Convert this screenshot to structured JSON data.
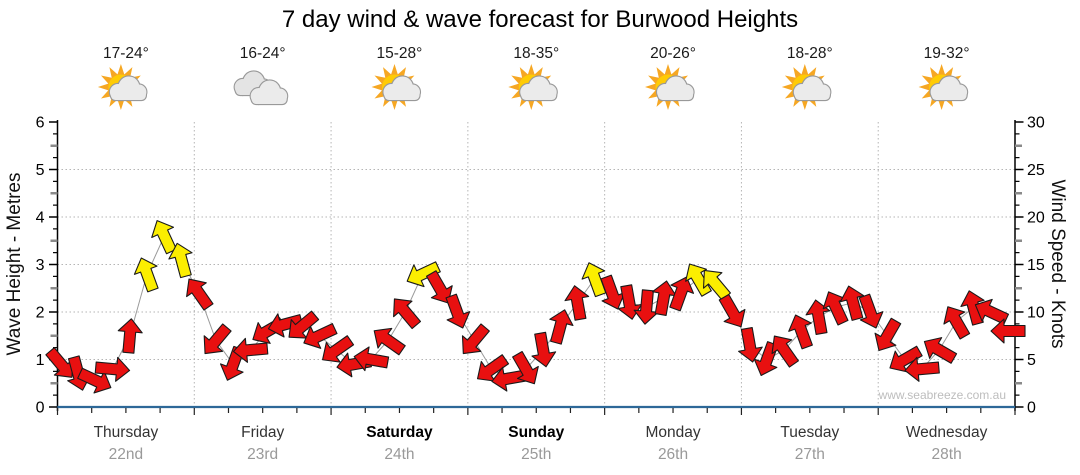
{
  "title": "7 day wind & wave forecast for Burwood Heights",
  "watermark": "www.seabreeze.com.au",
  "axes": {
    "left": {
      "label": "Wave Height - Metres",
      "ticks": [
        0,
        1,
        2,
        3,
        4,
        5,
        6
      ],
      "range": [
        0,
        6
      ]
    },
    "right": {
      "label": "Wind Speed - Knots",
      "ticks": [
        0,
        5,
        10,
        15,
        20,
        25,
        30
      ],
      "range": [
        0,
        30
      ]
    }
  },
  "days": [
    {
      "name": "Thursday",
      "date": "22nd",
      "temp": "17-24°",
      "icon": "partly-cloudy-icon",
      "bold": false
    },
    {
      "name": "Friday",
      "date": "23rd",
      "temp": "16-24°",
      "icon": "cloudy-icon",
      "bold": false
    },
    {
      "name": "Saturday",
      "date": "24th",
      "temp": "15-28°",
      "icon": "partly-cloudy-icon",
      "bold": true
    },
    {
      "name": "Sunday",
      "date": "25th",
      "temp": "18-35°",
      "icon": "partly-cloudy-icon",
      "bold": true
    },
    {
      "name": "Monday",
      "date": "26th",
      "temp": "20-26°",
      "icon": "partly-cloudy-icon",
      "bold": false
    },
    {
      "name": "Tuesday",
      "date": "27th",
      "temp": "18-28°",
      "icon": "partly-cloudy-icon",
      "bold": false
    },
    {
      "name": "Wednesday",
      "date": "28th",
      "temp": "19-32°",
      "icon": "partly-cloudy-icon",
      "bold": false
    }
  ],
  "chart_data": {
    "type": "line",
    "series_name": "Wind speed in knots (3-hourly, 8 points per day) shown as wind-direction arrows",
    "points_per_day": 8,
    "ylim_left_metres": [
      0,
      6
    ],
    "ylim_right_knots": [
      0,
      30
    ],
    "grid": "dotted horizontal at each metre (1-5) and vertical at day boundaries",
    "yellow_threshold_knots": 13,
    "wind_speed_knots": [
      4.5,
      3.5,
      2.8,
      4,
      7.5,
      14,
      18,
      15.5,
      12,
      7,
      4.5,
      6,
      8,
      8.7,
      8.5,
      7.5,
      6,
      4.5,
      5,
      7,
      10,
      14,
      12.5,
      10,
      7,
      4,
      3,
      4,
      6,
      8.5,
      11,
      13.5,
      12,
      11,
      10.5,
      11.5,
      12,
      13.5,
      13,
      10,
      6.5,
      5,
      6,
      8,
      9.5,
      10.5,
      11,
      10,
      7.5,
      5,
      4,
      6,
      9,
      10.5,
      10,
      8
    ],
    "arrow_dir_deg": [
      140,
      165,
      115,
      95,
      5,
      -20,
      -25,
      -15,
      -35,
      -140,
      -160,
      -95,
      -120,
      -105,
      -130,
      -115,
      -125,
      -100,
      -80,
      -55,
      -40,
      -115,
      150,
      160,
      -140,
      -125,
      -100,
      150,
      170,
      15,
      -10,
      -20,
      160,
      170,
      185,
      10,
      20,
      -30,
      -40,
      150,
      170,
      -160,
      -35,
      -20,
      -10,
      -25,
      -15,
      160,
      -150,
      -120,
      -95,
      -60,
      -30,
      -15,
      -65,
      -90
    ]
  },
  "colors": {
    "arrow_red": "#e81010",
    "arrow_yellow": "#fbee00",
    "arrow_outline": "#1a1a1a",
    "connector_line": "#9a9a9a",
    "grid": "#b5b5b5",
    "axis_black": "#000000",
    "bottom_axis_blue": "#2d6898",
    "half_tick_grey": "#8a8a8a",
    "day_text": "#333333",
    "date_text": "#999999",
    "sun_ray": "#f6a723",
    "sun_core": "#ffcb05",
    "cloud_fill": "#ebebeb",
    "cloud_outline": "#999999"
  }
}
